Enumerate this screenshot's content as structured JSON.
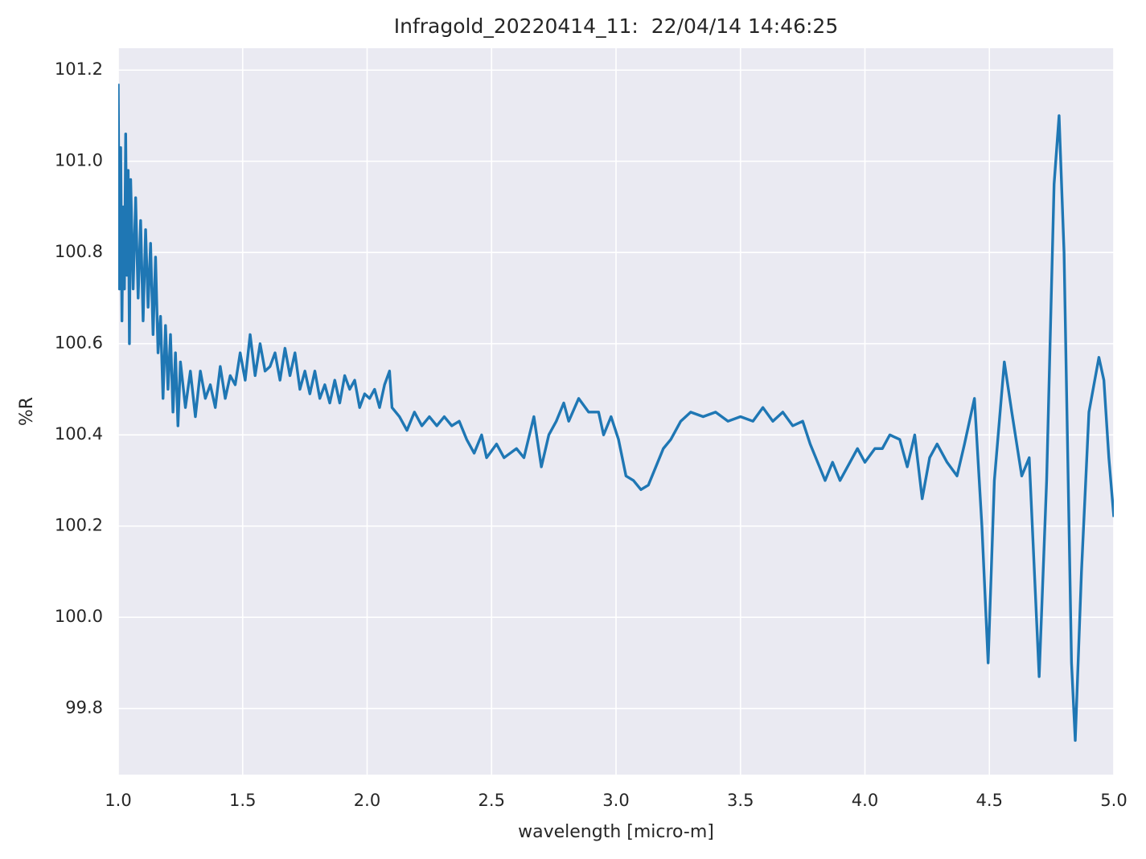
{
  "chart_data": {
    "type": "line",
    "title": "Infragold_20220414_11:  22/04/14 14:46:25",
    "x_label": "wavelength [micro-m]",
    "y_label": "%R",
    "grid": true,
    "xlim": [
      1.0,
      5.0
    ],
    "ylim": [
      99.655,
      101.248
    ],
    "xticks": [
      {
        "value": 1,
        "label": "1.0"
      },
      1.5,
      {
        "value": 2,
        "label": "2.0"
      },
      2.5,
      {
        "value": 3,
        "label": "3.0"
      },
      3.5,
      {
        "value": 4,
        "label": "4.0"
      },
      4.5,
      {
        "value": 5,
        "label": "5.0"
      }
    ],
    "yticks": [
      99.8,
      {
        "value": 100,
        "label": "100.0"
      },
      100.2,
      100.4,
      100.6,
      100.8,
      {
        "value": 101,
        "label": "101.0"
      },
      101.2
    ],
    "x": [
      1.0,
      1.005,
      1.01,
      1.015,
      1.02,
      1.025,
      1.03,
      1.035,
      1.04,
      1.045,
      1.05,
      1.06,
      1.07,
      1.08,
      1.09,
      1.1,
      1.11,
      1.12,
      1.13,
      1.14,
      1.15,
      1.16,
      1.17,
      1.18,
      1.19,
      1.2,
      1.21,
      1.22,
      1.23,
      1.24,
      1.25,
      1.27,
      1.29,
      1.31,
      1.33,
      1.35,
      1.37,
      1.39,
      1.41,
      1.43,
      1.45,
      1.47,
      1.49,
      1.51,
      1.53,
      1.55,
      1.57,
      1.59,
      1.61,
      1.63,
      1.65,
      1.67,
      1.69,
      1.71,
      1.73,
      1.75,
      1.77,
      1.79,
      1.81,
      1.83,
      1.85,
      1.87,
      1.89,
      1.91,
      1.93,
      1.95,
      1.97,
      1.99,
      2.01,
      2.03,
      2.05,
      2.07,
      2.09,
      2.1,
      2.13,
      2.16,
      2.19,
      2.22,
      2.25,
      2.28,
      2.31,
      2.34,
      2.37,
      2.4,
      2.43,
      2.46,
      2.48,
      2.52,
      2.55,
      2.6,
      2.63,
      2.67,
      2.7,
      2.73,
      2.76,
      2.79,
      2.81,
      2.85,
      2.89,
      2.93,
      2.95,
      2.98,
      3.01,
      3.04,
      3.07,
      3.1,
      3.13,
      3.16,
      3.19,
      3.22,
      3.26,
      3.3,
      3.35,
      3.4,
      3.45,
      3.5,
      3.55,
      3.59,
      3.63,
      3.67,
      3.71,
      3.75,
      3.78,
      3.81,
      3.84,
      3.87,
      3.9,
      3.93,
      3.97,
      4.0,
      4.04,
      4.07,
      4.1,
      4.14,
      4.17,
      4.2,
      4.23,
      4.26,
      4.29,
      4.33,
      4.37,
      4.4,
      4.44,
      4.47,
      4.495,
      4.52,
      4.56,
      4.59,
      4.63,
      4.66,
      4.685,
      4.7,
      4.73,
      4.76,
      4.78,
      4.8,
      4.83,
      4.845,
      4.87,
      4.9,
      4.94,
      4.96,
      4.98,
      5.0
    ],
    "series": [
      {
        "color": "#1f77b4",
        "values": [
          101.17,
          100.72,
          101.03,
          100.65,
          100.9,
          100.72,
          101.06,
          100.75,
          100.98,
          100.6,
          100.96,
          100.72,
          100.92,
          100.7,
          100.87,
          100.65,
          100.85,
          100.68,
          100.82,
          100.62,
          100.79,
          100.58,
          100.66,
          100.48,
          100.64,
          100.5,
          100.62,
          100.45,
          100.58,
          100.42,
          100.56,
          100.46,
          100.54,
          100.44,
          100.54,
          100.48,
          100.51,
          100.46,
          100.55,
          100.48,
          100.53,
          100.51,
          100.58,
          100.52,
          100.62,
          100.53,
          100.6,
          100.54,
          100.55,
          100.58,
          100.52,
          100.59,
          100.53,
          100.58,
          100.5,
          100.54,
          100.49,
          100.54,
          100.48,
          100.51,
          100.47,
          100.52,
          100.47,
          100.53,
          100.5,
          100.52,
          100.46,
          100.49,
          100.48,
          100.5,
          100.46,
          100.51,
          100.54,
          100.46,
          100.44,
          100.41,
          100.45,
          100.42,
          100.44,
          100.42,
          100.44,
          100.42,
          100.43,
          100.39,
          100.36,
          100.4,
          100.35,
          100.38,
          100.35,
          100.37,
          100.35,
          100.44,
          100.33,
          100.4,
          100.43,
          100.47,
          100.43,
          100.48,
          100.45,
          100.45,
          100.4,
          100.44,
          100.39,
          100.31,
          100.3,
          100.28,
          100.29,
          100.33,
          100.37,
          100.39,
          100.43,
          100.45,
          100.44,
          100.45,
          100.43,
          100.44,
          100.43,
          100.46,
          100.43,
          100.45,
          100.42,
          100.43,
          100.38,
          100.34,
          100.3,
          100.34,
          100.3,
          100.33,
          100.37,
          100.34,
          100.37,
          100.37,
          100.4,
          100.39,
          100.33,
          100.4,
          100.26,
          100.35,
          100.38,
          100.34,
          100.31,
          100.38,
          100.48,
          100.2,
          99.9,
          100.3,
          100.56,
          100.45,
          100.31,
          100.35,
          100.05,
          99.87,
          100.3,
          100.95,
          101.1,
          100.8,
          99.9,
          99.73,
          100.1,
          100.45,
          100.57,
          100.52,
          100.35,
          100.22
        ]
      }
    ]
  }
}
